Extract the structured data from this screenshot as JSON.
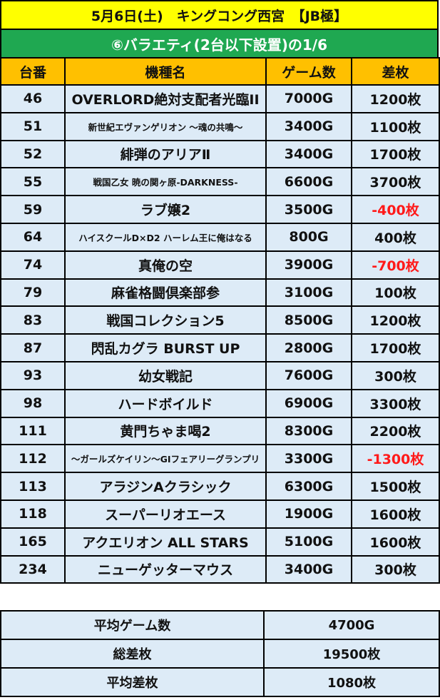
{
  "title": "5月6日(土)　キングコング西宮　【JB極】",
  "subtitle": "⑥バラエティ(2台以下設置)の1/6",
  "headers": [
    "台番",
    "機種名",
    "ゲーム数",
    "差枚"
  ],
  "colors": {
    "title_bg": "#ffff00",
    "subtitle_bg": "#1fa851",
    "header_bg": "#ffc000",
    "row_bg": "#ddebf7",
    "negative": "#ff1a1a"
  },
  "rows": [
    {
      "no": "46",
      "name": "OVERLORD絶対支配者光臨II",
      "games": "7000G",
      "diff": "1200枚"
    },
    {
      "no": "51",
      "name": "新世紀エヴァンゲリオン ～魂の共鳴～",
      "games": "3400G",
      "diff": "1100枚"
    },
    {
      "no": "52",
      "name": "緋弾のアリアⅡ",
      "games": "3400G",
      "diff": "1700枚"
    },
    {
      "no": "55",
      "name": "戦国乙女 暁の関ヶ原-DARKNESS-",
      "games": "6600G",
      "diff": "3700枚"
    },
    {
      "no": "59",
      "name": "ラブ嬢2",
      "games": "3500G",
      "diff": "-400枚"
    },
    {
      "no": "64",
      "name": "ハイスクールD×D2 ハーレム王に俺はなる",
      "games": "800G",
      "diff": "400枚"
    },
    {
      "no": "74",
      "name": "真俺の空",
      "games": "3900G",
      "diff": "-700枚"
    },
    {
      "no": "79",
      "name": "麻雀格闘倶楽部参",
      "games": "3100G",
      "diff": "100枚"
    },
    {
      "no": "83",
      "name": "戦国コレクション5",
      "games": "8500G",
      "diff": "1200枚"
    },
    {
      "no": "87",
      "name": "閃乱カグラ BURST UP",
      "games": "2800G",
      "diff": "1700枚"
    },
    {
      "no": "93",
      "name": "幼女戦記",
      "games": "7600G",
      "diff": "300枚"
    },
    {
      "no": "98",
      "name": "ハードボイルド",
      "games": "6900G",
      "diff": "3300枚"
    },
    {
      "no": "111",
      "name": "黄門ちゃま喝2",
      "games": "8300G",
      "diff": "2200枚"
    },
    {
      "no": "112",
      "name": "～ガールズケイリン～GIフェアリーグランプリ",
      "games": "3300G",
      "diff": "-1300枚"
    },
    {
      "no": "113",
      "name": "アラジンAクラシック",
      "games": "6300G",
      "diff": "1500枚"
    },
    {
      "no": "118",
      "name": "スーパーリオエース",
      "games": "1900G",
      "diff": "1600枚"
    },
    {
      "no": "165",
      "name": "アクエリオン ALL STARS",
      "games": "5100G",
      "diff": "1600枚"
    },
    {
      "no": "234",
      "name": "ニューゲッターマウス",
      "games": "3400G",
      "diff": "300枚"
    }
  ],
  "summary": [
    {
      "label": "平均ゲーム数",
      "value": "4700G"
    },
    {
      "label": "総差枚",
      "value": "19500枚"
    },
    {
      "label": "平均差枚",
      "value": "1080枚"
    }
  ]
}
